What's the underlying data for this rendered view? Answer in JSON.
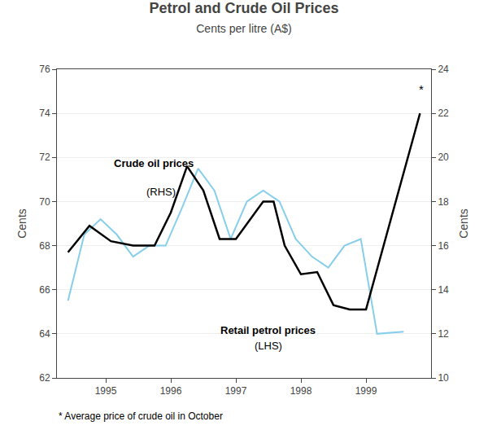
{
  "chart_data": {
    "type": "line",
    "title": "Petrol and Crude Oil Prices",
    "subtitle": "Cents per litre (A$)",
    "footnote": "* Average price of crude oil in October",
    "ylabel": "Cents",
    "y2label": "Cents",
    "xlim": [
      1994.25,
      2000.0
    ],
    "xticks": [
      1995,
      1996,
      1997,
      1998,
      1999
    ],
    "ylim": [
      62,
      76
    ],
    "yticks": [
      62,
      64,
      66,
      68,
      70,
      72,
      74,
      76
    ],
    "y2lim": [
      10,
      24
    ],
    "y2ticks": [
      10,
      12,
      14,
      16,
      18,
      20,
      22,
      24
    ],
    "grid": true,
    "annotations": [
      "Crude oil prices",
      "(RHS)",
      "Retail petrol prices",
      "(LHS)",
      "*"
    ],
    "series": [
      {
        "color": "#87CEEB",
        "x": [
          1994.42,
          1994.67,
          1994.92,
          1995.17,
          1995.42,
          1995.67,
          1995.92,
          1996.17,
          1996.42,
          1996.67,
          1996.92,
          1997.17,
          1997.42,
          1997.67,
          1997.92,
          1998.17,
          1998.42,
          1998.67,
          1998.92,
          1999.17,
          1999.58
        ],
        "values": [
          65.5,
          68.5,
          69.2,
          68.5,
          67.5,
          68.0,
          68.0,
          69.7,
          71.5,
          70.5,
          68.3,
          70.0,
          70.5,
          70.0,
          68.3,
          67.5,
          67.0,
          68.0,
          68.3,
          64.0,
          64.1
        ]
      },
      {
        "color": "#000000",
        "axis": "y2",
        "x": [
          1994.42,
          1994.75,
          1995.08,
          1995.42,
          1995.75,
          1996.0,
          1996.25,
          1996.5,
          1996.75,
          1997.0,
          1997.42,
          1997.58,
          1997.75,
          1998.0,
          1998.25,
          1998.5,
          1998.75,
          1999.0,
          1999.83
        ],
        "values": [
          15.7,
          16.9,
          16.2,
          16.0,
          16.0,
          17.5,
          19.6,
          18.5,
          16.3,
          16.3,
          18.0,
          18.0,
          16.0,
          14.7,
          14.8,
          13.3,
          13.1,
          13.1,
          22.0
        ]
      }
    ]
  }
}
